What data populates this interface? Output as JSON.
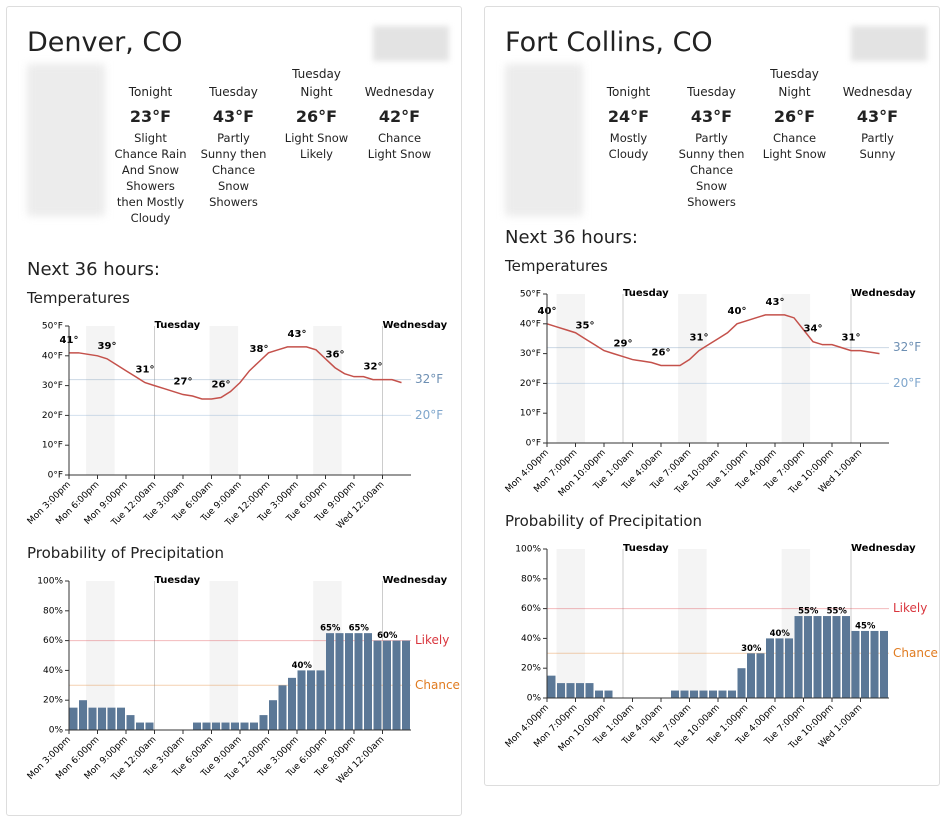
{
  "panels": [
    {
      "title": "Denver, CO",
      "forecast": [
        {
          "period": "Tonight",
          "temp": "23°F",
          "desc": "Slight Chance Rain And Snow Showers then Mostly Cloudy"
        },
        {
          "period": "Tuesday",
          "temp": "43°F",
          "desc": "Partly Sunny then Chance Snow Showers"
        },
        {
          "period": "Tuesday Night",
          "temp": "26°F",
          "desc": "Light Snow Likely"
        },
        {
          "period": "Wednesday",
          "temp": "42°F",
          "desc": "Chance Light Snow"
        }
      ],
      "next_label": "Next 36 hours:",
      "temperature": {
        "type": "line",
        "title": "Temperatures",
        "color": "#c4514b",
        "categories": [
          "Mon 3:00pm",
          null,
          null,
          "Mon 6:00pm",
          null,
          null,
          "Mon 9:00pm",
          null,
          null,
          "Tue 12:00am",
          null,
          null,
          "Tue 3:00am",
          null,
          null,
          "Tue 6:00am",
          null,
          null,
          "Tue 9:00am",
          null,
          null,
          "Tue 12:00pm",
          null,
          null,
          "Tue 3:00pm",
          null,
          null,
          "Tue 6:00pm",
          null,
          null,
          "Tue 9:00pm",
          null,
          null,
          "Wed 12:00am",
          null,
          null
        ],
        "values": [
          41,
          41,
          40.5,
          40,
          39,
          37,
          35,
          33,
          31,
          30,
          29,
          28,
          27,
          26.5,
          25.5,
          25.5,
          26,
          28,
          31,
          35,
          38,
          41,
          42,
          43,
          43,
          43,
          42,
          39,
          36,
          34,
          33,
          33,
          32,
          32,
          32,
          31
        ],
        "value_labels": [
          "41°",
          null,
          null,
          null,
          "39°",
          null,
          null,
          null,
          "31°",
          null,
          null,
          null,
          "27°",
          null,
          null,
          null,
          "26°",
          null,
          null,
          null,
          "38°",
          null,
          null,
          null,
          "43°",
          null,
          null,
          null,
          "36°",
          null,
          null,
          null,
          "32°",
          null,
          null,
          null
        ],
        "ylim": [
          0,
          50
        ],
        "yticks": [
          {
            "value": 0,
            "label": "0°F"
          },
          {
            "value": 10,
            "label": "10°F"
          },
          {
            "value": 20,
            "label": "20°F"
          },
          {
            "value": 30,
            "label": "30°F"
          },
          {
            "value": 40,
            "label": "40°F"
          },
          {
            "value": 50,
            "label": "50°F"
          }
        ],
        "reference_lines": [
          {
            "value": 32,
            "label": "32°F",
            "color": "#6d8fb3"
          },
          {
            "value": 20,
            "label": "20°F",
            "color": "#7fa6cc"
          }
        ],
        "day_markers": [
          {
            "index": 9,
            "label": "Tuesday"
          },
          {
            "index": 33,
            "label": "Wednesday"
          }
        ]
      },
      "precipitation": {
        "type": "bar",
        "title": "Probability of Precipitation",
        "color": "#5b7897",
        "categories": [
          "Mon 3:00pm",
          null,
          null,
          "Mon 6:00pm",
          null,
          null,
          "Mon 9:00pm",
          null,
          null,
          "Tue 12:00am",
          null,
          null,
          "Tue 3:00am",
          null,
          null,
          "Tue 6:00am",
          null,
          null,
          "Tue 9:00am",
          null,
          null,
          "Tue 12:00pm",
          null,
          null,
          "Tue 3:00pm",
          null,
          null,
          "Tue 6:00pm",
          null,
          null,
          "Tue 9:00pm",
          null,
          null,
          "Wed 12:00am",
          null,
          null
        ],
        "values": [
          15,
          20,
          15,
          15,
          15,
          15,
          10,
          5,
          5,
          0,
          0,
          0,
          0,
          5,
          5,
          5,
          5,
          5,
          5,
          5,
          10,
          20,
          30,
          35,
          40,
          40,
          40,
          65,
          65,
          65,
          65,
          65,
          60,
          60,
          60,
          60
        ],
        "value_labels": [
          null,
          null,
          null,
          null,
          null,
          null,
          null,
          null,
          null,
          null,
          null,
          null,
          null,
          null,
          null,
          null,
          null,
          null,
          null,
          null,
          null,
          null,
          null,
          null,
          "40%",
          null,
          null,
          "65%",
          null,
          null,
          "65%",
          null,
          null,
          "60%",
          null,
          null
        ],
        "ylim": [
          0,
          100
        ],
        "yticks": [
          {
            "value": 0,
            "label": "0%"
          },
          {
            "value": 20,
            "label": "20%"
          },
          {
            "value": 40,
            "label": "40%"
          },
          {
            "value": 60,
            "label": "60%"
          },
          {
            "value": 80,
            "label": "80%"
          },
          {
            "value": 100,
            "label": "100%"
          }
        ],
        "reference_lines": [
          {
            "value": 60,
            "label": "Likely",
            "color": "#d9363e"
          },
          {
            "value": 30,
            "label": "Chance",
            "color": "#e07b20"
          }
        ],
        "day_markers": [
          {
            "index": 9,
            "label": "Tuesday"
          },
          {
            "index": 33,
            "label": "Wednesday"
          }
        ]
      }
    },
    {
      "title": "Fort Collins, CO",
      "forecast": [
        {
          "period": "Tonight",
          "temp": "24°F",
          "desc": "Mostly Cloudy"
        },
        {
          "period": "Tuesday",
          "temp": "43°F",
          "desc": "Partly Sunny then Chance Snow Showers"
        },
        {
          "period": "Tuesday Night",
          "temp": "26°F",
          "desc": "Chance Light Snow"
        },
        {
          "period": "Wednesday",
          "temp": "43°F",
          "desc": "Partly Sunny"
        }
      ],
      "next_label": "Next 36 hours:",
      "temperature": {
        "type": "line",
        "title": "Temperatures",
        "color": "#c4514b",
        "categories": [
          "Mon 4:00pm",
          null,
          null,
          "Mon 7:00pm",
          null,
          null,
          "Mon 10:00pm",
          null,
          null,
          "Tue 1:00am",
          null,
          null,
          "Tue 4:00am",
          null,
          null,
          "Tue 7:00am",
          null,
          null,
          "Tue 10:00am",
          null,
          null,
          "Tue 1:00pm",
          null,
          null,
          "Tue 4:00pm",
          null,
          null,
          "Tue 7:00pm",
          null,
          null,
          "Tue 10:00pm",
          null,
          null,
          "Wed 1:00am",
          null,
          null
        ],
        "values": [
          40,
          39,
          38,
          37,
          35,
          33,
          31,
          30,
          29,
          28,
          27.5,
          27,
          26,
          26,
          26,
          28,
          31,
          33,
          35,
          37,
          40,
          41,
          42,
          43,
          43,
          43,
          42,
          38,
          34,
          33,
          33,
          32,
          31,
          31,
          30.5,
          30
        ],
        "value_labels": [
          "40°",
          null,
          null,
          null,
          "35°",
          null,
          null,
          null,
          "29°",
          null,
          null,
          null,
          "26°",
          null,
          null,
          null,
          "31°",
          null,
          null,
          null,
          "40°",
          null,
          null,
          null,
          "43°",
          null,
          null,
          null,
          "34°",
          null,
          null,
          null,
          "31°",
          null,
          null,
          null
        ],
        "ylim": [
          0,
          50
        ],
        "yticks": [
          {
            "value": 0,
            "label": "0°F"
          },
          {
            "value": 10,
            "label": "10°F"
          },
          {
            "value": 20,
            "label": "20°F"
          },
          {
            "value": 30,
            "label": "30°F"
          },
          {
            "value": 40,
            "label": "40°F"
          },
          {
            "value": 50,
            "label": "50°F"
          }
        ],
        "reference_lines": [
          {
            "value": 32,
            "label": "32°F",
            "color": "#6d8fb3"
          },
          {
            "value": 20,
            "label": "20°F",
            "color": "#7fa6cc"
          }
        ],
        "day_markers": [
          {
            "index": 8,
            "label": "Tuesday"
          },
          {
            "index": 32,
            "label": "Wednesday"
          }
        ]
      },
      "precipitation": {
        "type": "bar",
        "title": "Probability of Precipitation",
        "color": "#5b7897",
        "categories": [
          "Mon 4:00pm",
          null,
          null,
          "Mon 7:00pm",
          null,
          null,
          "Mon 10:00pm",
          null,
          null,
          "Tue 1:00am",
          null,
          null,
          "Tue 4:00am",
          null,
          null,
          "Tue 7:00am",
          null,
          null,
          "Tue 10:00am",
          null,
          null,
          "Tue 1:00pm",
          null,
          null,
          "Tue 4:00pm",
          null,
          null,
          "Tue 7:00pm",
          null,
          null,
          "Tue 10:00pm",
          null,
          null,
          "Wed 1:00am",
          null,
          null
        ],
        "values": [
          15,
          10,
          10,
          10,
          10,
          5,
          5,
          0,
          0,
          0,
          0,
          0,
          0,
          5,
          5,
          5,
          5,
          5,
          5,
          5,
          20,
          30,
          30,
          40,
          40,
          40,
          55,
          55,
          55,
          55,
          55,
          55,
          45,
          45,
          45,
          45
        ],
        "value_labels": [
          null,
          null,
          null,
          null,
          null,
          null,
          null,
          null,
          null,
          null,
          null,
          null,
          null,
          null,
          null,
          null,
          null,
          null,
          null,
          null,
          null,
          "30%",
          null,
          null,
          "40%",
          null,
          null,
          "55%",
          null,
          null,
          "55%",
          null,
          null,
          "45%",
          null,
          null
        ],
        "ylim": [
          0,
          100
        ],
        "yticks": [
          {
            "value": 0,
            "label": "0%"
          },
          {
            "value": 20,
            "label": "20%"
          },
          {
            "value": 40,
            "label": "40%"
          },
          {
            "value": 60,
            "label": "60%"
          },
          {
            "value": 80,
            "label": "80%"
          },
          {
            "value": 100,
            "label": "100%"
          }
        ],
        "reference_lines": [
          {
            "value": 60,
            "label": "Likely",
            "color": "#d9363e"
          },
          {
            "value": 30,
            "label": "Chance",
            "color": "#e07b20"
          }
        ],
        "day_markers": [
          {
            "index": 8,
            "label": "Tuesday"
          },
          {
            "index": 32,
            "label": "Wednesday"
          }
        ]
      }
    }
  ]
}
